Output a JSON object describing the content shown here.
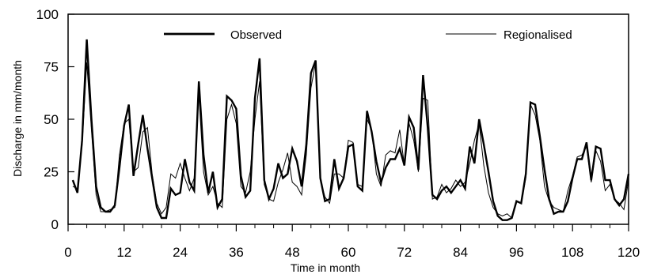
{
  "chart_data": {
    "type": "line",
    "xlabel": "Time in month",
    "ylabel": "Discharge in mm/month",
    "xlim": [
      0,
      120
    ],
    "ylim": [
      0,
      100
    ],
    "xticks": [
      0,
      12,
      24,
      36,
      48,
      60,
      72,
      84,
      96,
      108,
      120
    ],
    "yticks": [
      0,
      25,
      50,
      75,
      100
    ],
    "grid": false,
    "legend_position": "top",
    "series": [
      {
        "name": "Observed",
        "style": "thick",
        "color": "#000000",
        "x": [
          1,
          2,
          3,
          4,
          5,
          6,
          7,
          8,
          9,
          10,
          11,
          12,
          13,
          14,
          15,
          16,
          17,
          18,
          19,
          20,
          21,
          22,
          23,
          24,
          25,
          26,
          27,
          28,
          29,
          30,
          31,
          32,
          33,
          34,
          35,
          36,
          37,
          38,
          39,
          40,
          41,
          42,
          43,
          44,
          45,
          46,
          47,
          48,
          49,
          50,
          51,
          52,
          53,
          54,
          55,
          56,
          57,
          58,
          59,
          60,
          61,
          62,
          63,
          64,
          65,
          66,
          67,
          68,
          69,
          70,
          71,
          72,
          73,
          74,
          75,
          76,
          77,
          78,
          79,
          80,
          81,
          82,
          83,
          84,
          85,
          86,
          87,
          88,
          89,
          90,
          91,
          92,
          93,
          94,
          95,
          96,
          97,
          98,
          99,
          100,
          101,
          102,
          103,
          104,
          105,
          106,
          107,
          108,
          109,
          110,
          111,
          112,
          113,
          114,
          115,
          116,
          117,
          118,
          119,
          120
        ],
        "values": [
          21,
          15,
          40,
          88,
          50,
          18,
          8,
          6,
          6,
          9,
          27,
          47,
          57,
          23,
          38,
          52,
          36,
          22,
          8,
          3,
          3,
          17,
          14,
          15,
          31,
          20,
          16,
          68,
          33,
          15,
          25,
          8,
          12,
          61,
          59,
          55,
          23,
          13,
          16,
          60,
          79,
          21,
          12,
          17,
          29,
          22,
          24,
          36,
          30,
          18,
          38,
          72,
          78,
          22,
          11,
          12,
          31,
          17,
          22,
          37,
          38,
          18,
          16,
          54,
          44,
          30,
          20,
          27,
          31,
          31,
          36,
          28,
          51,
          46,
          26,
          71,
          46,
          14,
          12,
          16,
          18,
          15,
          18,
          21,
          17,
          37,
          29,
          50,
          38,
          25,
          11,
          4,
          2,
          2,
          3,
          11,
          10,
          24,
          58,
          57,
          42,
          26,
          12,
          5,
          6,
          6,
          11,
          22,
          31,
          31,
          39,
          21,
          37,
          36,
          21,
          21,
          12,
          9,
          12,
          24
        ]
      },
      {
        "name": "Regionalised",
        "style": "thin",
        "color": "#000000",
        "x": [
          1,
          2,
          3,
          4,
          5,
          6,
          7,
          8,
          9,
          10,
          11,
          12,
          13,
          14,
          15,
          16,
          17,
          18,
          19,
          20,
          21,
          22,
          23,
          24,
          25,
          26,
          27,
          28,
          29,
          30,
          31,
          32,
          33,
          34,
          35,
          36,
          37,
          38,
          39,
          40,
          41,
          42,
          43,
          44,
          45,
          46,
          47,
          48,
          49,
          50,
          51,
          52,
          53,
          54,
          55,
          56,
          57,
          58,
          59,
          60,
          61,
          62,
          63,
          64,
          65,
          66,
          67,
          68,
          69,
          70,
          71,
          72,
          73,
          74,
          75,
          76,
          77,
          78,
          79,
          80,
          81,
          82,
          83,
          84,
          85,
          86,
          87,
          88,
          89,
          90,
          91,
          92,
          93,
          94,
          95,
          96,
          97,
          98,
          99,
          100,
          101,
          102,
          103,
          104,
          105,
          106,
          107,
          108,
          109,
          110,
          111,
          112,
          113,
          114,
          115,
          116,
          117,
          118,
          119,
          120
        ],
        "values": [
          18,
          17,
          38,
          77,
          45,
          14,
          6,
          6,
          7,
          8,
          33,
          48,
          50,
          25,
          27,
          44,
          46,
          24,
          10,
          5,
          8,
          24,
          22,
          29,
          22,
          16,
          22,
          62,
          25,
          14,
          18,
          10,
          8,
          50,
          57,
          48,
          18,
          15,
          25,
          50,
          68,
          19,
          12,
          11,
          20,
          26,
          34,
          20,
          18,
          14,
          33,
          65,
          77,
          21,
          13,
          10,
          24,
          24,
          22,
          40,
          39,
          19,
          18,
          50,
          45,
          24,
          18,
          33,
          35,
          34,
          45,
          28,
          48,
          40,
          25,
          60,
          59,
          12,
          13,
          19,
          15,
          17,
          21,
          18,
          20,
          29,
          40,
          48,
          28,
          15,
          8,
          5,
          4,
          5,
          3,
          11,
          10,
          22,
          57,
          52,
          40,
          18,
          11,
          8,
          7,
          6,
          16,
          23,
          32,
          33,
          37,
          20,
          35,
          30,
          16,
          19,
          12,
          10,
          7,
          21
        ]
      }
    ]
  }
}
